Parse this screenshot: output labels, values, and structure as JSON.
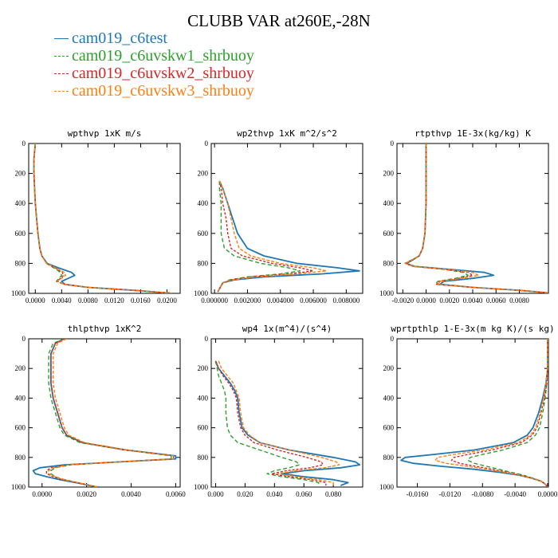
{
  "title": "CLUBB VAR at260E,-28N",
  "legend": [
    {
      "label": "cam019_c6test",
      "color": "#1f77b4",
      "style": "solid"
    },
    {
      "label": "cam019_c6uvskw1_shrbuoy",
      "color": "#2ca02c",
      "style": "dashed"
    },
    {
      "label": "cam019_c6uvskw2_shrbuoy",
      "color": "#d62728",
      "style": "dashed"
    },
    {
      "label": "cam019_c6uvskw3_shrbuoy",
      "color": "#ff7f0e",
      "style": "dashed"
    }
  ],
  "chart_data": [
    {
      "type": "line",
      "title": "wpthvp   1xK m/s",
      "xlim": [
        -0.001,
        0.022
      ],
      "ylim": [
        1000,
        0
      ],
      "xticks": [
        0.0,
        0.004,
        0.008,
        0.012,
        0.016,
        0.02
      ],
      "xticklabels": [
        "0.0000",
        "0.0040",
        "0.0080",
        "0.0120",
        "0.0160",
        "0.0200"
      ],
      "yticks": [
        0,
        200,
        400,
        600,
        800,
        1000
      ],
      "y": [
        0,
        100,
        200,
        300,
        400,
        500,
        600,
        700,
        750,
        800,
        830,
        860,
        880,
        900,
        920,
        940,
        960,
        980,
        1000
      ],
      "series": [
        {
          "name": "cam019_c6test",
          "values": [
            0.0,
            -0.0002,
            -0.0002,
            -0.0001,
            0.0,
            0.0002,
            0.0004,
            0.0007,
            0.001,
            0.0018,
            0.0035,
            0.0055,
            0.006,
            0.005,
            0.004,
            0.0045,
            0.008,
            0.015,
            0.021
          ]
        },
        {
          "name": "cam019_c6uvskw1_shrbuoy",
          "values": [
            0.0,
            -0.0002,
            -0.0002,
            -0.0001,
            0.0,
            0.0002,
            0.0004,
            0.0007,
            0.001,
            0.0017,
            0.0028,
            0.0038,
            0.004,
            0.0036,
            0.0032,
            0.0044,
            0.008,
            0.015,
            0.021
          ]
        },
        {
          "name": "cam019_c6uvskw2_shrbuoy",
          "values": [
            0.0,
            -0.0002,
            -0.0002,
            -0.0001,
            0.0,
            0.0002,
            0.0004,
            0.0007,
            0.001,
            0.0017,
            0.003,
            0.0041,
            0.0043,
            0.0038,
            0.0033,
            0.0044,
            0.008,
            0.015,
            0.021
          ]
        },
        {
          "name": "cam019_c6uvskw3_shrbuoy",
          "values": [
            0.0,
            -0.0002,
            -0.0002,
            -0.0001,
            0.0,
            0.0002,
            0.0004,
            0.0007,
            0.001,
            0.0017,
            0.0031,
            0.0044,
            0.0046,
            0.004,
            0.0034,
            0.0045,
            0.008,
            0.015,
            0.021
          ]
        }
      ]
    },
    {
      "type": "line",
      "title": "wp2thvp   1xK m^2/s^2",
      "xlim": [
        -0.0002,
        0.009
      ],
      "ylim": [
        1000,
        0
      ],
      "xticks": [
        0.0,
        0.002,
        0.004,
        0.006,
        0.008
      ],
      "xticklabels": [
        "0.000000",
        "0.002000",
        "0.004000",
        "0.006000",
        "0.008000"
      ],
      "yticks": [
        0,
        200,
        400,
        600,
        800,
        1000
      ],
      "y": [
        250,
        300,
        400,
        500,
        600,
        700,
        750,
        800,
        830,
        850,
        870,
        890,
        910,
        930,
        950,
        970,
        990
      ],
      "series": [
        {
          "name": "cam019_c6test",
          "values": [
            0.0003,
            0.0005,
            0.0008,
            0.0011,
            0.0014,
            0.002,
            0.003,
            0.005,
            0.0075,
            0.0088,
            0.0065,
            0.003,
            0.0012,
            0.0005,
            0.0004,
            0.0003,
            0.0002
          ]
        },
        {
          "name": "cam019_c6uvskw1_shrbuoy",
          "values": [
            0.0003,
            0.0003,
            0.0004,
            0.0004,
            0.0004,
            0.0006,
            0.0012,
            0.0028,
            0.0045,
            0.0052,
            0.004,
            0.002,
            0.0009,
            0.0005,
            0.0004,
            0.0003,
            0.0002
          ]
        },
        {
          "name": "cam019_c6uvskw2_shrbuoy",
          "values": [
            0.0003,
            0.0004,
            0.0005,
            0.0007,
            0.0008,
            0.001,
            0.0017,
            0.0035,
            0.0052,
            0.006,
            0.0045,
            0.0022,
            0.001,
            0.0005,
            0.0004,
            0.0003,
            0.0002
          ]
        },
        {
          "name": "cam019_c6uvskw3_shrbuoy",
          "values": [
            0.0003,
            0.0005,
            0.0008,
            0.001,
            0.0012,
            0.0015,
            0.0022,
            0.004,
            0.006,
            0.0068,
            0.005,
            0.0025,
            0.0011,
            0.0005,
            0.0004,
            0.0003,
            0.0002
          ]
        }
      ]
    },
    {
      "type": "line",
      "title": "rtpthvp   1E-3x(kg/kg) K",
      "xlim": [
        -0.0025,
        0.0105
      ],
      "ylim": [
        1000,
        0
      ],
      "xticks": [
        -0.002,
        0.0,
        0.002,
        0.004,
        0.006,
        0.008
      ],
      "xticklabels": [
        "-0.0020",
        "0.0000",
        "0.0020",
        "0.0040",
        "0.0060",
        "0.0080"
      ],
      "yticks": [
        0,
        200,
        400,
        600,
        800,
        1000
      ],
      "y": [
        0,
        200,
        400,
        600,
        700,
        750,
        780,
        800,
        820,
        840,
        860,
        880,
        900,
        920,
        940,
        960,
        980,
        1000
      ],
      "series": [
        {
          "name": "cam019_c6test",
          "values": [
            0.0,
            0.0,
            0.0,
            -0.0001,
            -0.0003,
            -0.0006,
            -0.0012,
            -0.0017,
            -0.001,
            0.002,
            0.005,
            0.0058,
            0.004,
            0.0015,
            0.0012,
            0.004,
            0.008,
            0.011
          ]
        },
        {
          "name": "cam019_c6uvskw1_shrbuoy",
          "values": [
            0.0,
            0.0,
            0.0,
            -0.0001,
            -0.0003,
            -0.0006,
            -0.0013,
            -0.0018,
            -0.0011,
            0.0015,
            0.0032,
            0.0036,
            0.0025,
            0.001,
            0.0008,
            0.004,
            0.008,
            0.011
          ]
        },
        {
          "name": "cam019_c6uvskw2_shrbuoy",
          "values": [
            0.0,
            0.0,
            0.0,
            -0.0001,
            -0.0003,
            -0.0006,
            -0.0013,
            -0.0018,
            -0.0011,
            0.0016,
            0.0036,
            0.004,
            0.0028,
            0.0011,
            0.0009,
            0.004,
            0.008,
            0.011
          ]
        },
        {
          "name": "cam019_c6uvskw3_shrbuoy",
          "values": [
            0.0,
            0.0,
            0.0,
            -0.0001,
            -0.0003,
            -0.0006,
            -0.0013,
            -0.0018,
            -0.0011,
            0.0018,
            0.004,
            0.0045,
            0.003,
            0.0012,
            0.001,
            0.004,
            0.008,
            0.011
          ]
        }
      ]
    },
    {
      "type": "line",
      "title": "thlpthvp   1xK^2",
      "xlim": [
        -0.0006,
        0.0062
      ],
      "ylim": [
        1000,
        0
      ],
      "xticks": [
        0.0,
        0.002,
        0.004,
        0.006
      ],
      "xticklabels": [
        "0.0000",
        "0.0020",
        "0.0040",
        "0.0060"
      ],
      "yticks": [
        0,
        200,
        400,
        600,
        800,
        1000
      ],
      "y": [
        0,
        30,
        100,
        200,
        300,
        400,
        500,
        600,
        650,
        700,
        750,
        790,
        810,
        830,
        850,
        870,
        890,
        910,
        930,
        950,
        970,
        1000
      ],
      "series": [
        {
          "name": "cam019_c6test",
          "values": [
            0.001,
            0.0006,
            0.0004,
            0.0004,
            0.0004,
            0.0005,
            0.0007,
            0.0009,
            0.0011,
            0.0018,
            0.0038,
            0.006,
            0.006,
            0.0035,
            0.001,
            -0.0001,
            -0.0004,
            -0.0003,
            0.0002,
            0.0008,
            0.0015,
            0.0025
          ]
        },
        {
          "name": "cam019_c6uvskw1_shrbuoy",
          "values": [
            0.001,
            0.0005,
            0.0003,
            0.0003,
            0.0003,
            0.0004,
            0.0006,
            0.0008,
            0.001,
            0.0017,
            0.0037,
            0.0058,
            0.0058,
            0.0035,
            0.0013,
            0.0006,
            0.0004,
            0.0004,
            0.0006,
            0.001,
            0.0016,
            0.0025
          ]
        },
        {
          "name": "cam019_c6uvskw2_shrbuoy",
          "values": [
            0.001,
            0.0006,
            0.0004,
            0.0004,
            0.0004,
            0.0005,
            0.0007,
            0.0009,
            0.0011,
            0.0018,
            0.0037,
            0.0059,
            0.0059,
            0.0035,
            0.0012,
            0.0004,
            0.0002,
            0.0002,
            0.0005,
            0.0009,
            0.0016,
            0.0025
          ]
        },
        {
          "name": "cam019_c6uvskw3_shrbuoy",
          "values": [
            0.0011,
            0.0007,
            0.0005,
            0.0005,
            0.0005,
            0.0006,
            0.0008,
            0.001,
            0.0012,
            0.0019,
            0.0038,
            0.0059,
            0.0059,
            0.0035,
            0.0012,
            0.0005,
            0.0003,
            0.0003,
            0.0006,
            0.001,
            0.0016,
            0.0025
          ]
        }
      ]
    },
    {
      "type": "line",
      "title": "wp4   1x(m^4)/(s^4)",
      "xlim": [
        -0.003,
        0.1
      ],
      "ylim": [
        1000,
        0
      ],
      "xticks": [
        0.0,
        0.02,
        0.04,
        0.06,
        0.08
      ],
      "xticklabels": [
        "0.000",
        "0.020",
        "0.040",
        "0.060",
        "0.080"
      ],
      "yticks": [
        0,
        200,
        400,
        600,
        800,
        1000
      ],
      "y": [
        150,
        200,
        250,
        300,
        350,
        400,
        500,
        600,
        650,
        700,
        750,
        800,
        830,
        850,
        870,
        890,
        910,
        930,
        950,
        970,
        990
      ],
      "series": [
        {
          "name": "cam019_c6test",
          "values": [
            0.0,
            0.002,
            0.006,
            0.01,
            0.013,
            0.015,
            0.016,
            0.018,
            0.022,
            0.03,
            0.05,
            0.08,
            0.095,
            0.098,
            0.085,
            0.06,
            0.045,
            0.06,
            0.08,
            0.09,
            0.085
          ]
        },
        {
          "name": "cam019_c6uvskw1_shrbuoy",
          "values": [
            0.0,
            0.001,
            0.002,
            0.004,
            0.006,
            0.007,
            0.007,
            0.008,
            0.01,
            0.015,
            0.03,
            0.045,
            0.055,
            0.057,
            0.05,
            0.04,
            0.035,
            0.045,
            0.06,
            0.07,
            0.07
          ]
        },
        {
          "name": "cam019_c6uvskw2_shrbuoy",
          "values": [
            0.0,
            0.002,
            0.005,
            0.009,
            0.012,
            0.014,
            0.015,
            0.017,
            0.02,
            0.026,
            0.042,
            0.062,
            0.072,
            0.073,
            0.064,
            0.048,
            0.038,
            0.05,
            0.065,
            0.075,
            0.075
          ]
        },
        {
          "name": "cam019_c6uvskw3_shrbuoy",
          "values": [
            0.002,
            0.004,
            0.008,
            0.012,
            0.014,
            0.016,
            0.017,
            0.019,
            0.023,
            0.03,
            0.05,
            0.072,
            0.082,
            0.084,
            0.074,
            0.055,
            0.042,
            0.055,
            0.07,
            0.08,
            0.08
          ]
        }
      ]
    },
    {
      "type": "line",
      "title": "wprtpthlp   1-E-3x(m kg K)/(s kg)",
      "xlim": [
        -0.0185,
        0.0001
      ],
      "ylim": [
        1000,
        0
      ],
      "xticks": [
        -0.016,
        -0.012,
        -0.008,
        -0.004,
        0.0
      ],
      "xticklabels": [
        "-0.0160",
        "-0.0120",
        "-0.0080",
        "-0.0040",
        "0.0000"
      ],
      "yticks": [
        0,
        200,
        400,
        600,
        800,
        1000
      ],
      "y": [
        0,
        200,
        300,
        400,
        500,
        600,
        650,
        700,
        750,
        780,
        800,
        820,
        840,
        860,
        880,
        900,
        920,
        940,
        960,
        980,
        1000
      ],
      "series": [
        {
          "name": "cam019_c6test",
          "values": [
            0.0,
            0.0,
            -0.0002,
            -0.0006,
            -0.0011,
            -0.0018,
            -0.0025,
            -0.0042,
            -0.009,
            -0.014,
            -0.0175,
            -0.018,
            -0.0165,
            -0.013,
            -0.009,
            -0.006,
            -0.0035,
            -0.002,
            -0.0008,
            -0.0003,
            0.0
          ]
        },
        {
          "name": "cam019_c6uvskw1_shrbuoy",
          "values": [
            0.0,
            0.0,
            -0.0001,
            -0.0003,
            -0.0006,
            -0.001,
            -0.0015,
            -0.0025,
            -0.0055,
            -0.008,
            -0.0095,
            -0.0098,
            -0.009,
            -0.0075,
            -0.006,
            -0.0045,
            -0.003,
            -0.0018,
            -0.0008,
            -0.0003,
            0.0
          ]
        },
        {
          "name": "cam019_c6uvskw2_shrbuoy",
          "values": [
            0.0,
            0.0,
            -0.0001,
            -0.0004,
            -0.0008,
            -0.0013,
            -0.0019,
            -0.0032,
            -0.0068,
            -0.0098,
            -0.0115,
            -0.0118,
            -0.0108,
            -0.0088,
            -0.0068,
            -0.005,
            -0.0032,
            -0.0019,
            -0.0008,
            -0.0003,
            0.0
          ]
        },
        {
          "name": "cam019_c6uvskw3_shrbuoy",
          "values": [
            0.0,
            0.0,
            -0.0002,
            -0.0005,
            -0.0009,
            -0.0015,
            -0.0021,
            -0.0036,
            -0.0078,
            -0.0115,
            -0.0135,
            -0.0138,
            -0.0125,
            -0.0098,
            -0.0074,
            -0.0053,
            -0.0034,
            -0.002,
            -0.0008,
            -0.0003,
            0.0
          ]
        }
      ]
    }
  ]
}
